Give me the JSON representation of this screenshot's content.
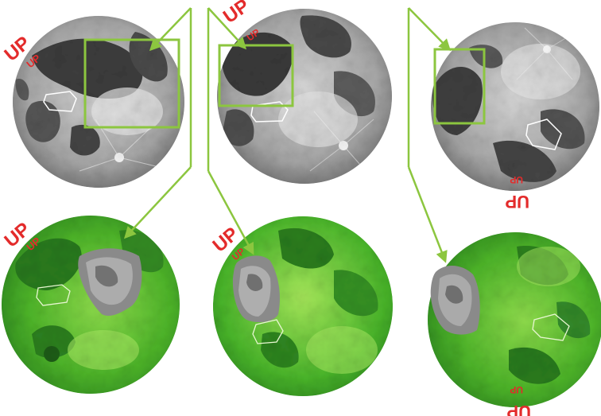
{
  "labels": {
    "up_large": "UP",
    "up_small": "UP"
  },
  "colors": {
    "arrow": "#8cc63f",
    "up_text": "#e32b2b",
    "outline": "#ffffff",
    "moon_light": "#f4f4f4",
    "moon_mid": "#a8a8a8",
    "moon_dark": "#3c3c3c",
    "green_light": "#b8ec6e",
    "green_mid": "#58c12e",
    "green_dark": "#1d5e18"
  },
  "panels": [
    {
      "row": "top",
      "column": "left",
      "style": "grayscale",
      "marked_up": "upright"
    },
    {
      "row": "top",
      "column": "middle",
      "style": "grayscale",
      "marked_up": "upright"
    },
    {
      "row": "top",
      "column": "right",
      "style": "grayscale",
      "marked_up": "inverted"
    },
    {
      "row": "bottom",
      "column": "left",
      "style": "green-tinted",
      "marked_up": "upright"
    },
    {
      "row": "bottom",
      "column": "middle",
      "style": "green-tinted",
      "marked_up": "upright"
    },
    {
      "row": "bottom",
      "column": "right",
      "style": "green-tinted",
      "marked_up": "inverted"
    }
  ]
}
